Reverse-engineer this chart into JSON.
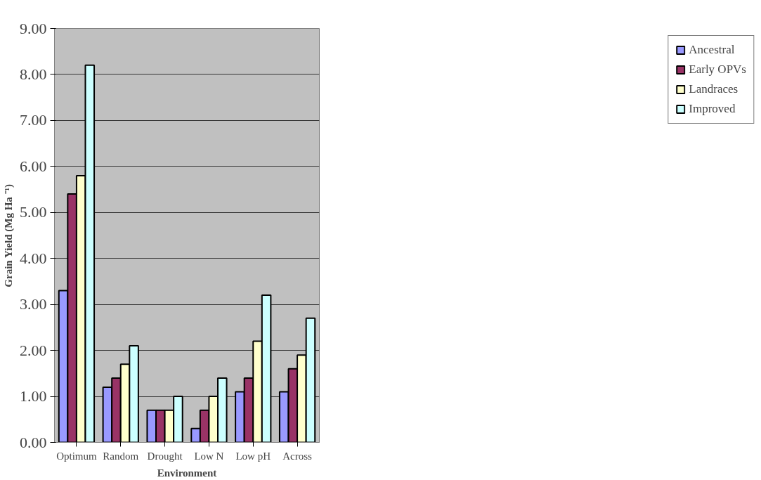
{
  "chart_data": {
    "type": "bar",
    "xlabel": "Environment",
    "ylabel": "Grain Yield (Mg Ha ⁻¹)",
    "categories": [
      "Optimum",
      "Random",
      "Drought",
      "Low N",
      "Low pH",
      "Across"
    ],
    "series": [
      {
        "name": "Ancestral",
        "color": "#9999ff",
        "values": [
          3.3,
          1.2,
          0.7,
          0.3,
          1.1,
          1.1
        ]
      },
      {
        "name": "Early OPVs",
        "color": "#993366",
        "values": [
          5.4,
          1.4,
          0.7,
          0.7,
          1.4,
          1.6
        ]
      },
      {
        "name": "Landraces",
        "color": "#ffffcc",
        "values": [
          5.8,
          1.7,
          0.7,
          1.0,
          2.2,
          1.9
        ]
      },
      {
        "name": "Improved",
        "color": "#ccffff",
        "values": [
          8.2,
          2.1,
          1.0,
          1.4,
          3.2,
          2.7
        ]
      }
    ],
    "ylim": [
      0,
      9
    ],
    "yticks": [
      {
        "value": 0,
        "label": "0.00"
      },
      {
        "value": 1,
        "label": "1.00"
      },
      {
        "value": 2,
        "label": "2.00"
      },
      {
        "value": 3,
        "label": "3.00"
      },
      {
        "value": 4,
        "label": "4.00"
      },
      {
        "value": 5,
        "label": "5.00"
      },
      {
        "value": 6,
        "label": "6.00"
      },
      {
        "value": 7,
        "label": "7.00"
      },
      {
        "value": 8,
        "label": "8.00"
      },
      {
        "value": 9,
        "label": "9.00"
      }
    ],
    "grid": "y",
    "legend": "right"
  }
}
